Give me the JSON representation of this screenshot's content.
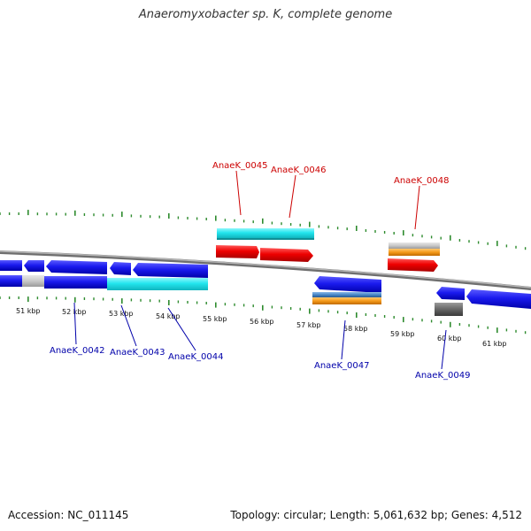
{
  "title": "Anaeromyxobacter sp. K, complete genome",
  "footer": {
    "accession": "Accession: NC_011145",
    "stats": "Topology: circular; Length: 5,061,632 bp; Genes: 4,512"
  },
  "colors": {
    "backbone": "#8c8c8c",
    "tick": "#2e8b2e",
    "forward_label": "#cc0000",
    "reverse_label": "#0000aa",
    "blue_gene": "#1a1aee",
    "cyan_gene": "#22e5ee",
    "red_gene": "#ee0000",
    "orange_gene": "#f59a1a",
    "gray_gene": "#c8c8c8",
    "dark_gray_gene": "#666666",
    "steel_gene": "#4a88c8"
  },
  "scale": {
    "labels": [
      "51 kbp",
      "52 kbp",
      "53 kbp",
      "54 kbp",
      "55 kbp",
      "56 kbp",
      "57 kbp",
      "58 kbp",
      "59 kbp",
      "60 kbp",
      "61 kbp"
    ]
  },
  "genes": {
    "forward": [
      {
        "label": "AnaeK_0045"
      },
      {
        "label": "AnaeK_0046"
      },
      {
        "label": "AnaeK_0048"
      }
    ],
    "reverse": [
      {
        "label": "AnaeK_0042"
      },
      {
        "label": "AnaeK_0043"
      },
      {
        "label": "AnaeK_0044"
      },
      {
        "label": "AnaeK_0047"
      },
      {
        "label": "AnaeK_0049"
      }
    ]
  }
}
